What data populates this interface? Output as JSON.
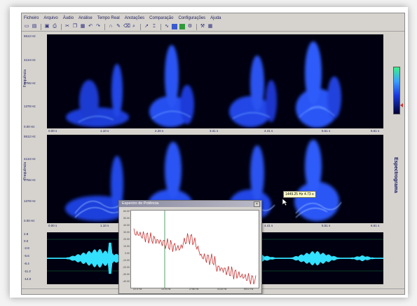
{
  "menu": [
    "Ficheiro",
    "Arquivo",
    "Áudio",
    "Análise",
    "Tempo Real",
    "Anotações",
    "Comparação",
    "Configurações",
    "Ajuda"
  ],
  "toolbar_icons": [
    "new-icon",
    "open-icon",
    "save-icon",
    "print-icon",
    "cut-icon",
    "copy-icon",
    "paste-icon",
    "undo-icon",
    "redo-icon",
    "loop-icon",
    "pen-icon",
    "eraser-icon",
    "zoom-icon",
    "play-icon",
    "cursor-icon",
    "blue-panel-icon",
    "green-panel-icon",
    "settings-icon",
    "wave-icon",
    "tools-icon",
    "grid-icon"
  ],
  "spectrogram_top": {
    "ylabel": "Frequência",
    "yticks": [
      "5512 Hz",
      "4134 Hz",
      "2756 Hz",
      "1378 Hz",
      "0.00 Hz"
    ],
    "xticks": [
      "0.00 s",
      "1.10 s",
      "2.20 s",
      "3.31 s",
      "4.41 s",
      "5.51 s",
      "6.61 s"
    ]
  },
  "spectrogram_bottom": {
    "ylabel": "Frequência",
    "yticks": [
      "5512 Hz",
      "4134 Hz",
      "2756 Hz",
      "1378 Hz",
      "0.00 Hz"
    ],
    "xticks": [
      "0.00 s",
      "1.10 s",
      "2.20 s",
      "3.31 s",
      "4.41 s",
      "5.51 s",
      "6.61 s"
    ]
  },
  "side_label": "Espectrograma",
  "tooltip": "1449.25 Hz   4.73 s",
  "waveform": {
    "yticks": [
      "2.8",
      "0.0",
      "-2.8",
      "-5.6",
      "-8.4",
      "-11.2",
      "-14.0"
    ]
  },
  "popup": {
    "title": "Espectro de Potência",
    "close": "×",
    "yticks": [
      "60.00",
      "50.00",
      "40.00",
      "30.00",
      "20.00",
      "10.00",
      "0.00",
      "-10.00",
      "-20.00",
      "-30.00",
      "-40.00"
    ],
    "xticks": [
      "22.0 Hz",
      "1378 Hz",
      "2756 Hz",
      "4134 Hz",
      "5512 Hz"
    ]
  },
  "colors": {
    "spectrogram_blue": "#2a4cff",
    "wave_cyan": "#33e0ff",
    "spectrum_red": "#c83030",
    "cursor_green": "#2a8a4a"
  }
}
